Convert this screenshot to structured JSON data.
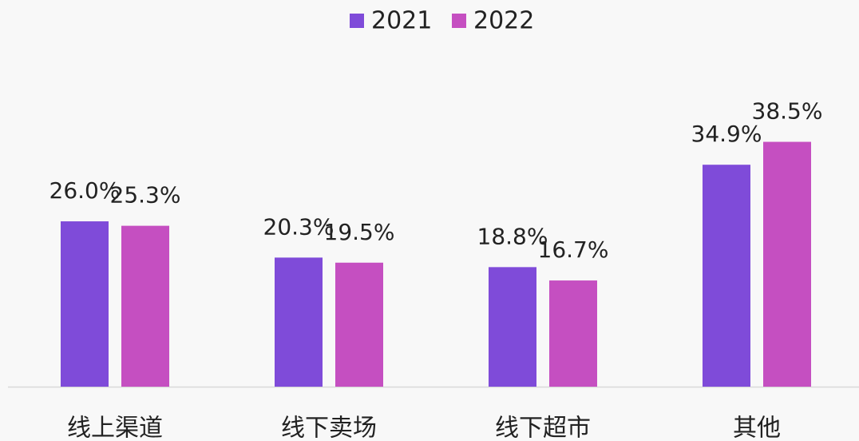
{
  "chart_data": {
    "type": "bar",
    "categories": [
      "线上渠道",
      "线下卖场",
      "线下超市",
      "其他"
    ],
    "series": [
      {
        "name": "2021",
        "color": "#7f4bd9",
        "values": [
          26.0,
          20.3,
          18.8,
          34.9
        ],
        "value_labels": [
          "26.0%",
          "20.3%",
          "18.8%",
          "34.9%"
        ]
      },
      {
        "name": "2022",
        "color": "#c54fc1",
        "values": [
          25.3,
          19.5,
          16.7,
          38.5
        ],
        "value_labels": [
          "25.3%",
          "19.5%",
          "16.7%",
          "38.5%"
        ]
      }
    ],
    "legend": "top"
  }
}
